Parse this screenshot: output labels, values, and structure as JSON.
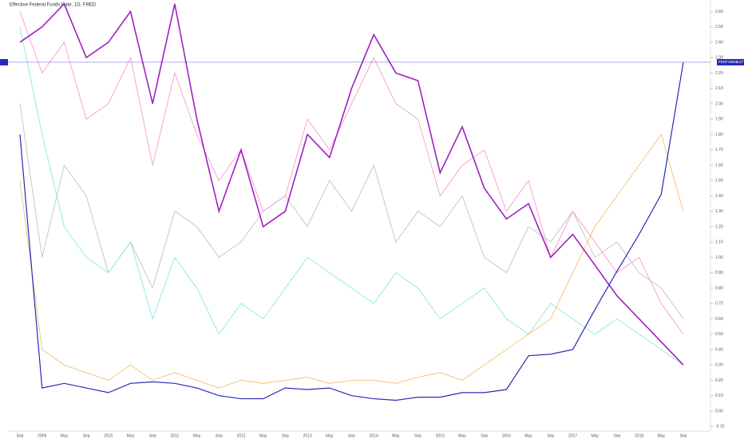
{
  "chart_data": {
    "type": "line",
    "title": "Effective Federal Funds Rate, 1D, FRED",
    "categories": [
      "Sep",
      "2009",
      "May",
      "Sep",
      "2010",
      "May",
      "Sep",
      "2011",
      "May",
      "Sep",
      "2012",
      "May",
      "Sep",
      "2013",
      "May",
      "Sep",
      "2014",
      "May",
      "Sep",
      "2015",
      "May",
      "Sep",
      "2016",
      "May",
      "Sep",
      "2017",
      "May",
      "Sep",
      "2018",
      "May",
      "Sep"
    ],
    "ylim": [
      -0.13,
      2.675
    ],
    "yticks": [
      {
        "value": -0.1,
        "label": "-0.10"
      },
      {
        "value": 0,
        "label": "0.00"
      },
      {
        "value": 0.1,
        "label": "0.10"
      },
      {
        "value": 0.2,
        "label": "0.20"
      },
      {
        "value": 0.3,
        "label": "0.30"
      },
      {
        "value": 0.4,
        "label": "0.40"
      },
      {
        "value": 0.5,
        "label": "0.50"
      },
      {
        "value": 0.6,
        "label": "0.60"
      },
      {
        "value": 0.7,
        "label": "0.70"
      },
      {
        "value": 0.8,
        "label": "0.80"
      },
      {
        "value": 0.9,
        "label": "0.90"
      },
      {
        "value": 1,
        "label": "1.00"
      },
      {
        "value": 1.1,
        "label": "1.10"
      },
      {
        "value": 1.2,
        "label": "1.20"
      },
      {
        "value": 1.3,
        "label": "1.30"
      },
      {
        "value": 1.4,
        "label": "1.40"
      },
      {
        "value": 1.5,
        "label": "1.50"
      },
      {
        "value": 1.6,
        "label": "1.60"
      },
      {
        "value": 1.7,
        "label": "1.70"
      },
      {
        "value": 1.8,
        "label": "1.80"
      },
      {
        "value": 1.9,
        "label": "1.90"
      },
      {
        "value": 2,
        "label": "2.00"
      },
      {
        "value": 2.1,
        "label": "2.10"
      },
      {
        "value": 2.2,
        "label": "2.20"
      },
      {
        "value": 2.3,
        "label": "2.30"
      },
      {
        "value": 2.4,
        "label": "2.40"
      },
      {
        "value": 2.5,
        "label": "2.50"
      },
      {
        "value": 2.6,
        "label": "2.60"
      }
    ],
    "grid": false,
    "series": [
      {
        "color": "#bbbbbb",
        "width": 0.8,
        "values": [
          2.0,
          1.0,
          1.6,
          1.4,
          0.9,
          1.1,
          0.8,
          1.3,
          1.2,
          1.0,
          1.1,
          1.3,
          1.4,
          1.2,
          1.5,
          1.3,
          1.6,
          1.1,
          1.3,
          1.2,
          1.4,
          1.0,
          0.9,
          1.2,
          1.1,
          1.3,
          1.0,
          1.1,
          0.9,
          0.8,
          0.6
        ]
      },
      {
        "color": "#f48fc4",
        "width": 0.8,
        "values": [
          2.6,
          2.2,
          2.4,
          1.9,
          2.0,
          2.3,
          1.6,
          2.2,
          1.8,
          1.5,
          1.7,
          1.3,
          1.4,
          1.9,
          1.7,
          2.0,
          2.3,
          2.0,
          1.9,
          1.4,
          1.6,
          1.7,
          1.3,
          1.5,
          1.0,
          1.3,
          1.1,
          0.9,
          1.0,
          0.7,
          0.5
        ]
      },
      {
        "color": "#7fe3e3",
        "width": 0.8,
        "values": [
          2.5,
          1.8,
          1.2,
          1.0,
          0.9,
          1.1,
          0.6,
          1.0,
          0.8,
          0.5,
          0.7,
          0.6,
          0.8,
          1.0,
          0.9,
          0.8,
          0.7,
          0.9,
          0.8,
          0.6,
          0.7,
          0.8,
          0.6,
          0.5,
          0.7,
          0.6,
          0.5,
          0.6,
          0.5,
          0.4,
          0.3
        ]
      },
      {
        "color": "#f5b860",
        "width": 0.8,
        "values": [
          1.5,
          0.4,
          0.3,
          0.25,
          0.2,
          0.3,
          0.2,
          0.25,
          0.2,
          0.15,
          0.2,
          0.18,
          0.2,
          0.22,
          0.18,
          0.2,
          0.2,
          0.18,
          0.22,
          0.25,
          0.2,
          0.3,
          0.4,
          0.5,
          0.6,
          0.9,
          1.2,
          1.4,
          1.6,
          1.8,
          1.3
        ]
      },
      {
        "color": "#a020c0",
        "width": 1.6,
        "values": [
          2.4,
          2.5,
          2.65,
          2.3,
          2.4,
          2.6,
          2.0,
          2.65,
          1.9,
          1.3,
          1.7,
          1.2,
          1.3,
          1.8,
          1.65,
          2.1,
          2.45,
          2.2,
          2.15,
          1.55,
          1.85,
          1.45,
          1.25,
          1.35,
          1.0,
          1.15,
          0.95,
          0.75,
          0.6,
          0.45,
          0.3
        ]
      },
      {
        "name": "FEDFUNDS",
        "color": "#2a2ab8",
        "width": 1.2,
        "values": [
          1.8,
          0.15,
          0.18,
          0.15,
          0.12,
          0.18,
          0.19,
          0.18,
          0.15,
          0.1,
          0.08,
          0.08,
          0.15,
          0.14,
          0.15,
          0.1,
          0.08,
          0.07,
          0.09,
          0.09,
          0.12,
          0.12,
          0.14,
          0.36,
          0.37,
          0.4,
          0.66,
          0.91,
          1.15,
          1.41,
          2.27
        ]
      }
    ]
  }
}
